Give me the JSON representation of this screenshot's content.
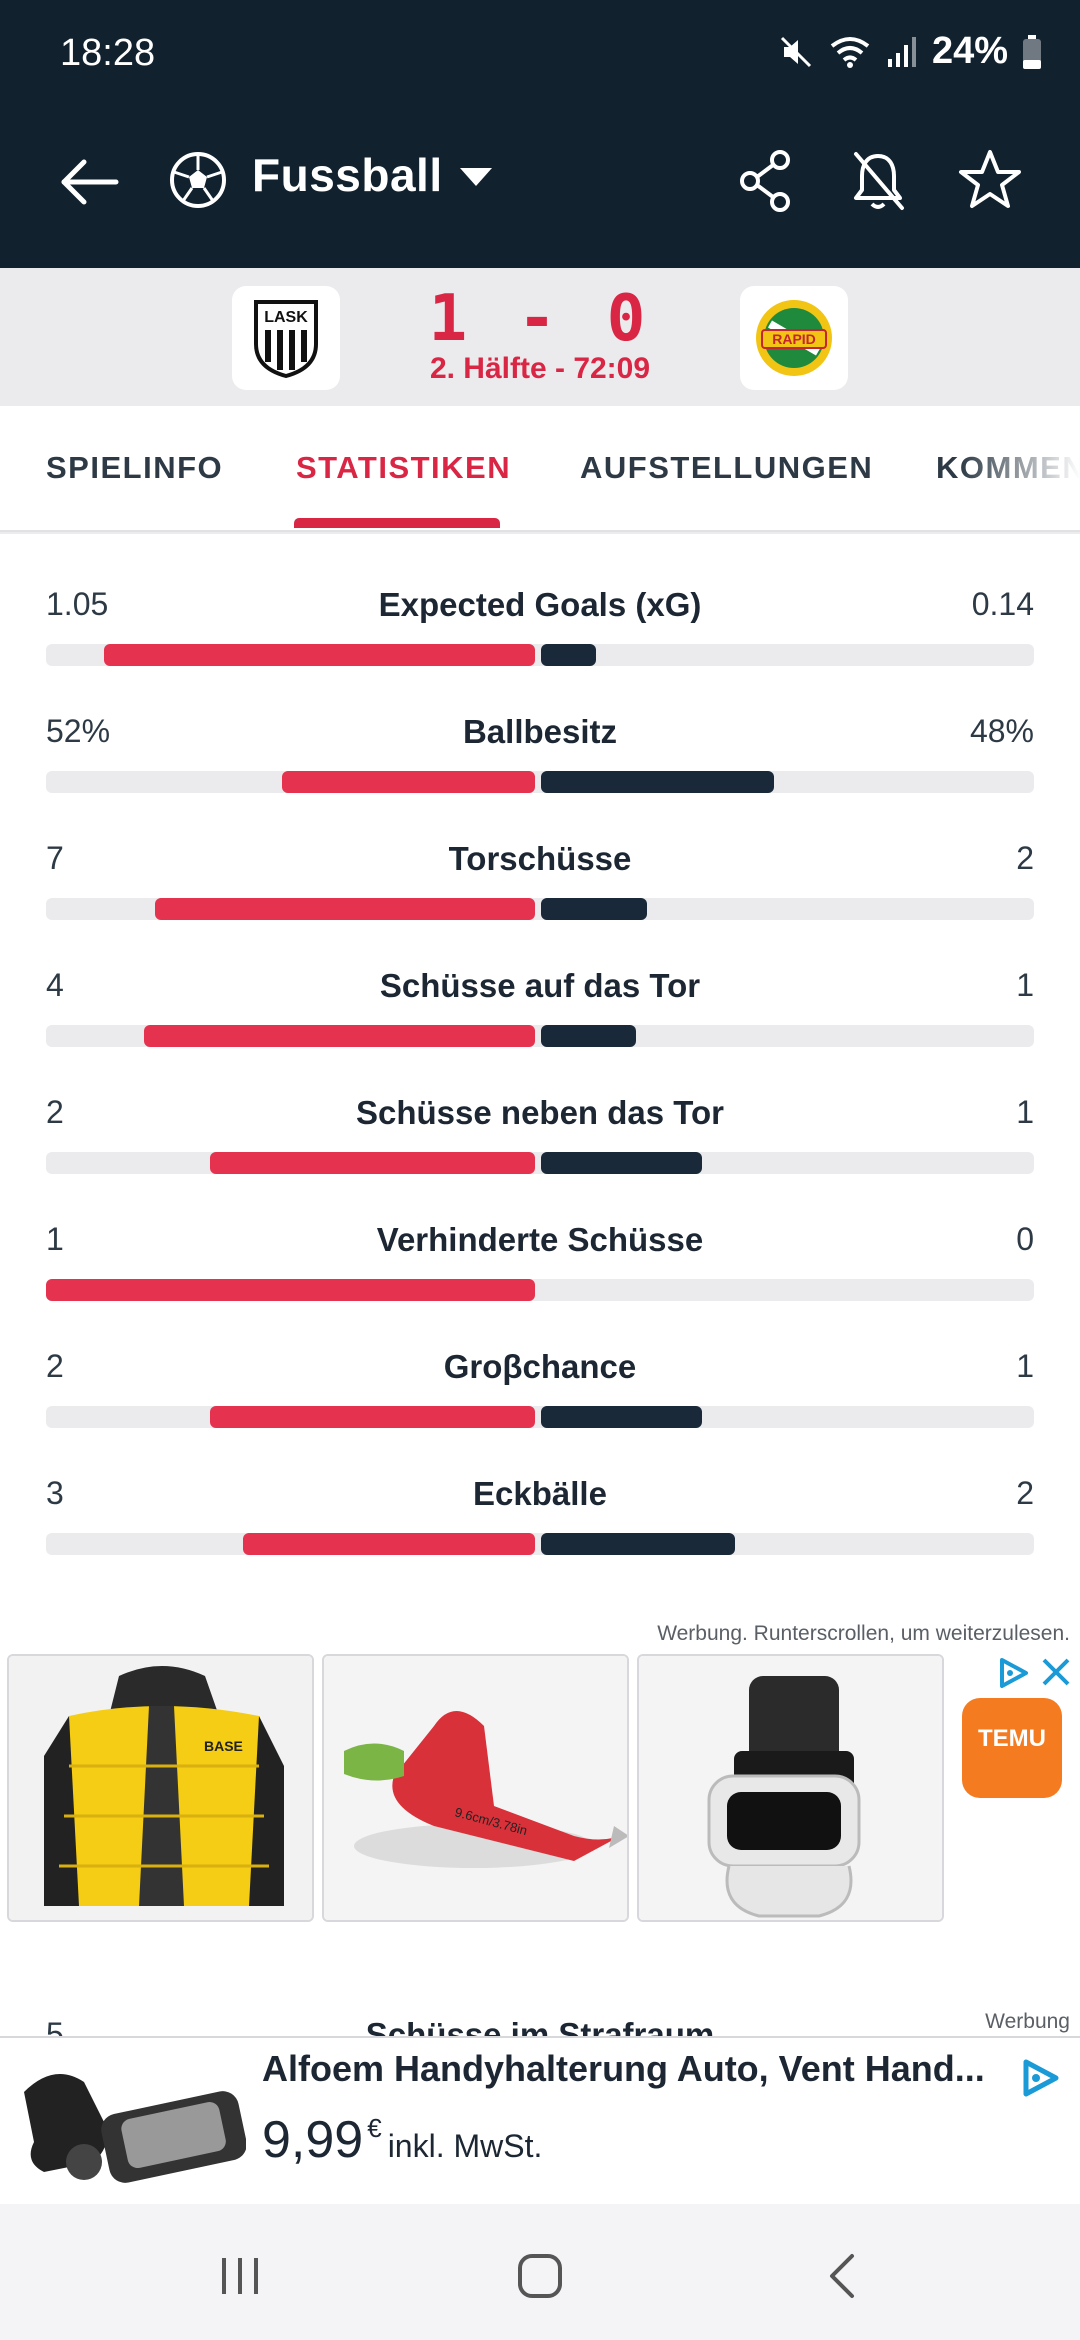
{
  "status_bar": {
    "time": "18:28",
    "battery": "24%"
  },
  "appbar": {
    "title": "Fussball",
    "icons": [
      "back-arrow-icon",
      "soccer-ball-icon",
      "caret-down-icon",
      "share-icon",
      "bell-off-icon",
      "star-icon"
    ]
  },
  "match": {
    "home_logo_text": "LASK",
    "away_logo_text": "RAPID",
    "score": "1 - 0",
    "time": "2. Hälfte - 72:09"
  },
  "tabs": [
    {
      "label": "SPIELINFO",
      "active": false
    },
    {
      "label": "STATISTIKEN",
      "active": true
    },
    {
      "label": "AUFSTELLUNGEN",
      "active": false
    },
    {
      "label": "KOMMENTAR",
      "active": false
    }
  ],
  "stats": [
    {
      "label": "Expected Goals (xG)",
      "home": "1.05",
      "away": "0.14",
      "home_value": 1.05,
      "away_value": 0.14
    },
    {
      "label": "Ballbesitz",
      "home": "52%",
      "away": "48%",
      "home_value": 52,
      "away_value": 48
    },
    {
      "label": "Torschüsse",
      "home": "7",
      "away": "2",
      "home_value": 7,
      "away_value": 2
    },
    {
      "label": "Schüsse auf das Tor",
      "home": "4",
      "away": "1",
      "home_value": 4,
      "away_value": 1
    },
    {
      "label": "Schüsse neben das Tor",
      "home": "2",
      "away": "1",
      "home_value": 2,
      "away_value": 1
    },
    {
      "label": "Verhinderte Schüsse",
      "home": "1",
      "away": "0",
      "home_value": 1,
      "away_value": 0
    },
    {
      "label": "Groβchance",
      "home": "2",
      "away": "1",
      "home_value": 2,
      "away_value": 1
    },
    {
      "label": "Eckbälle",
      "home": "3",
      "away": "2",
      "home_value": 3,
      "away_value": 2
    }
  ],
  "ads": {
    "note": "Werbung. Runterscrollen, um weiterzulesen.",
    "brand": "TEMU",
    "product_2_label": "9.6cm/3.78in",
    "product_1_label": "BASE",
    "banner_note": "Werbung",
    "banner_title": "Alfoem Handyhalterung Auto, Vent Hand...",
    "banner_price": "9,99",
    "banner_currency": "€",
    "banner_vat": "inkl. MwSt."
  },
  "partial_row": {
    "left": "5",
    "label": "Schüsse im Strafraum"
  },
  "colors": {
    "accent": "#d92645",
    "home_bar": "#e5334f",
    "away_bar": "#19293a",
    "header": "#11212e"
  }
}
